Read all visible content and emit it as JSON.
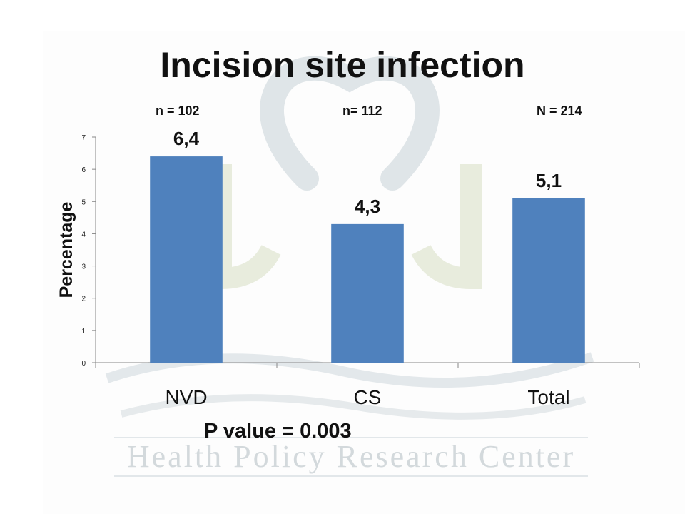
{
  "slide": {
    "title": "Incision site infection",
    "sample_sizes": [
      "n = 102",
      "n= 112",
      "N = 214"
    ],
    "pvalue_text": "P value = 0.003",
    "watermark_text": "Health Policy Research Center"
  },
  "chart_data": {
    "type": "bar",
    "categories": [
      "NVD",
      "CS",
      "Total"
    ],
    "values": [
      6.4,
      4.3,
      5.1
    ],
    "data_labels": [
      "6,4",
      "4,3",
      "5,1"
    ],
    "ylabel": "Percentage",
    "ylim": [
      0,
      7
    ],
    "yticks": [
      "0",
      "1",
      "2",
      "3",
      "4",
      "5",
      "6",
      "7"
    ],
    "grid": false,
    "bar_color": "#4f81bd"
  }
}
